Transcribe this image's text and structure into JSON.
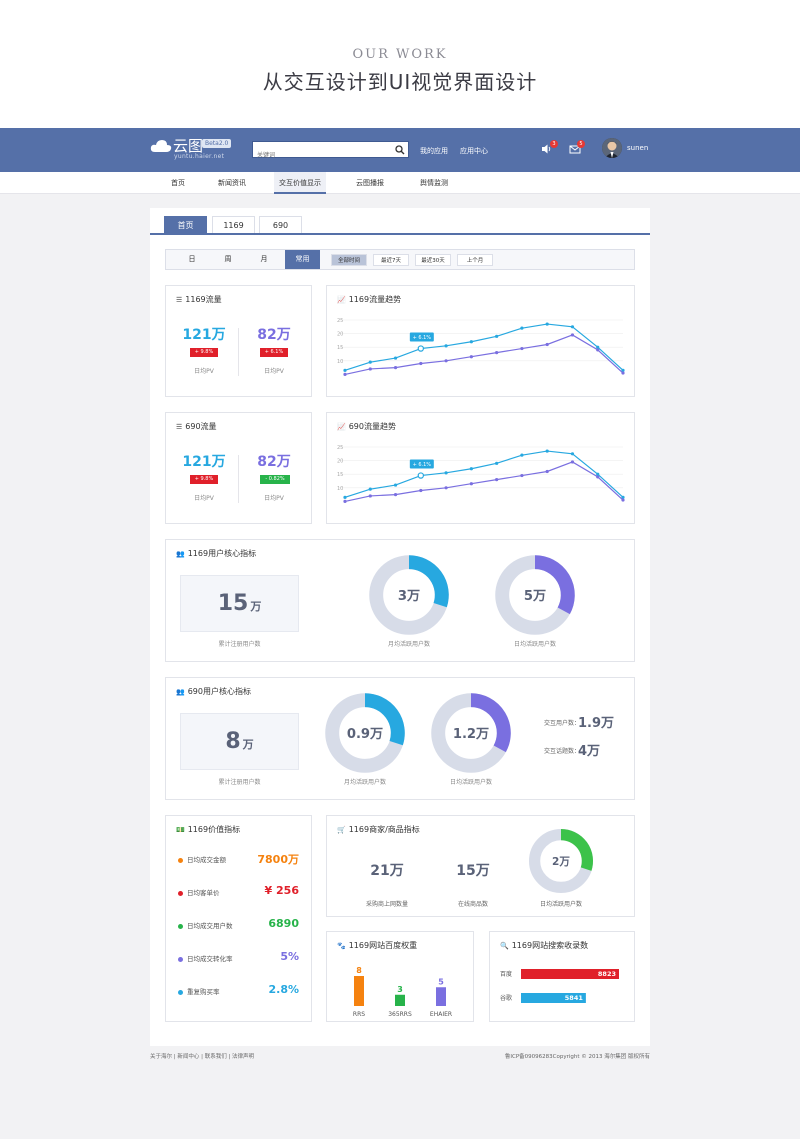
{
  "hero": {
    "en": "OUR WORK",
    "cn": "从交互设计到UI视觉界面设计"
  },
  "topbar": {
    "logo_name": "云图",
    "logo_beta": "Beta2.0",
    "logo_url": "yuntu.haier.net",
    "search_placeholder": "关键词",
    "links": [
      "我的应用",
      "应用中心"
    ],
    "sound_badge": "3",
    "mail_badge": "5",
    "username": "sunen",
    "bg_color": "#5570a8"
  },
  "subnav": [
    "首页",
    "新闻资讯",
    "交互价值显示",
    "云图播报",
    "舆情监测"
  ],
  "tabs": [
    "首页",
    "1169",
    "690"
  ],
  "filter": {
    "periods": [
      "日",
      "周",
      "月",
      "常用"
    ],
    "ranges": [
      "全部时间",
      "最近7天",
      "最近30天",
      "上个月"
    ]
  },
  "traffic": [
    {
      "title": "1169流量",
      "left": {
        "value": "121万",
        "change": "+ 9.8%",
        "label": "日均PV"
      },
      "right": {
        "value": "82万",
        "change": "+ 6.1%",
        "label": "日均PV"
      }
    },
    {
      "title": "690流量",
      "left": {
        "value": "121万",
        "change": "+ 9.8%",
        "label": "日均PV"
      },
      "right": {
        "value": "82万",
        "change": "- 0.82%",
        "label": "日均PV"
      }
    }
  ],
  "chart_data": [
    {
      "type": "line",
      "title": "1169流量趋势",
      "ylim": [
        0,
        25
      ],
      "yticks": [
        "25",
        "20",
        "15",
        "10"
      ],
      "grid": true,
      "annotation": "+ 6.1%",
      "series": [
        {
          "values": [
            6.5,
            9.5,
            11,
            14.5,
            15.5,
            17,
            19,
            22,
            23.5,
            22.5,
            15,
            6.5
          ],
          "color": "#27a8e0"
        },
        {
          "values": [
            5,
            7,
            7.5,
            9,
            10,
            11.5,
            13,
            14.5,
            16,
            19.5,
            14,
            5.5
          ],
          "color": "#7a6fe0"
        }
      ]
    },
    {
      "type": "line",
      "title": "690流量趋势",
      "ylim": [
        0,
        25
      ],
      "yticks": [
        "25",
        "20",
        "15",
        "10"
      ],
      "grid": true,
      "annotation": "+ 6.1%",
      "series": [
        {
          "values": [
            6.5,
            9.5,
            11,
            14.5,
            15.5,
            17,
            19,
            22,
            23.5,
            22.5,
            15,
            6.5
          ],
          "color": "#27a8e0"
        },
        {
          "values": [
            5,
            7,
            7.5,
            9,
            10,
            11.5,
            13,
            14.5,
            16,
            19.5,
            14,
            5.5
          ],
          "color": "#7a6fe0"
        }
      ]
    },
    {
      "type": "bar",
      "title": "1169网站百度权重",
      "categories": [
        "RRS",
        "365RRS",
        "EHAIER"
      ],
      "values": [
        8,
        3,
        5
      ],
      "colors": [
        "#f5820f",
        "#27b34a",
        "#7a6fe0"
      ],
      "ylim": [
        0,
        8
      ]
    },
    {
      "type": "bar",
      "title": "1169网站搜索收录数",
      "categories": [
        "百度",
        "谷歌"
      ],
      "values": [
        8823,
        5841
      ],
      "colors": [
        "#e0202a",
        "#27a8e0"
      ],
      "orientation": "horizontal",
      "xlim": [
        0,
        8823
      ]
    }
  ],
  "core1169": {
    "title": "1169用户核心指标",
    "total": {
      "num": "15",
      "unit": "万",
      "label": "累计注册用户数"
    },
    "donuts": [
      {
        "value": "3万",
        "label": "月均活跃用户数",
        "fraction": 0.3,
        "color": "#27a8e0"
      },
      {
        "value": "5万",
        "label": "日均活跃用户数",
        "fraction": 0.33,
        "color": "#7a6fe0"
      }
    ]
  },
  "core690": {
    "title": "690用户核心指标",
    "total": {
      "num": "8",
      "unit": "万",
      "label": "累计注册用户数"
    },
    "donuts": [
      {
        "value": "0.9万",
        "label": "月均活跃用户数",
        "fraction": 0.3,
        "color": "#27a8e0"
      },
      {
        "value": "1.2万",
        "label": "日均活跃用户数",
        "fraction": 0.33,
        "color": "#7a6fe0"
      }
    ],
    "side": [
      {
        "label": "交互用户数：",
        "value": "1.9万"
      },
      {
        "label": "交互话题数：",
        "value": "4万"
      }
    ]
  },
  "value": {
    "title": "1169价值指标",
    "items": [
      {
        "label": "日均成交金额",
        "value": "7800万",
        "color": "#f5820f"
      },
      {
        "label": "日均客单价",
        "value": "¥ 256",
        "color": "#e0202a"
      },
      {
        "label": "日均成交用户数",
        "value": "6890",
        "color": "#27b34a"
      },
      {
        "label": "日均成交转化率",
        "value": "5%",
        "color": "#7a6fe0"
      },
      {
        "label": "重复购买率",
        "value": "2.8%",
        "color": "#27a8e0"
      }
    ]
  },
  "merchant": {
    "title": "1169商家/商品指标",
    "stats": [
      {
        "value": "21万",
        "label": "采购商上网数量"
      },
      {
        "value": "15万",
        "label": "在线商品数"
      }
    ],
    "donut": {
      "value": "2万",
      "label": "日均活跃用户数",
      "fraction": 0.3,
      "color": "#3cc24a"
    }
  },
  "footer": {
    "links": "关于海尔 | 新闻中心 | 联系我们 | 法律声明",
    "copyright": "鲁ICP备09096283Copyright © 2013 海尔集团 版权所有"
  }
}
